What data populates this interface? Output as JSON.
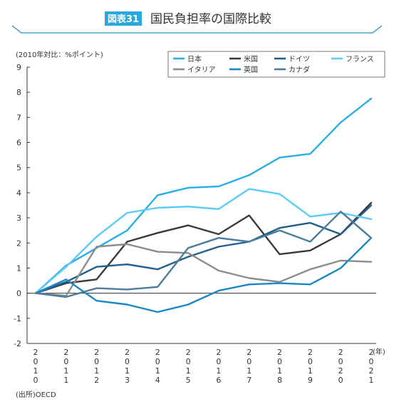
{
  "header": {
    "badge": "図表31",
    "title": "国民負担率の国際比較"
  },
  "colors": {
    "badge_bg": "#29a8e0",
    "frame": "#4aa0d0",
    "axis": "#333333",
    "grid": "#dddddd"
  },
  "chart_data": {
    "type": "line",
    "unit_label": "(2010年対比：%ポイント)",
    "x_unit": "(年)",
    "source": "(出所)OECD",
    "x": [
      "2010",
      "2011",
      "2012",
      "2013",
      "2014",
      "2015",
      "2016",
      "2017",
      "2018",
      "2019",
      "2020",
      "2021"
    ],
    "ylim": [
      -2,
      9
    ],
    "yticks": [
      -2,
      -1,
      0,
      1,
      2,
      3,
      4,
      5,
      6,
      7,
      8,
      9
    ],
    "grid": false,
    "legend_position": "top-right",
    "series": [
      {
        "name": "日本",
        "color": "#29aee6",
        "values": [
          0,
          1.1,
          1.8,
          2.5,
          3.9,
          4.2,
          4.25,
          4.7,
          5.4,
          5.55,
          6.8,
          7.75
        ]
      },
      {
        "name": "米国",
        "color": "#3a3a3a",
        "values": [
          0,
          0.4,
          0.55,
          2.05,
          2.4,
          2.7,
          2.35,
          3.1,
          1.55,
          1.7,
          2.35,
          3.6
        ]
      },
      {
        "name": "ドイツ",
        "color": "#1f5f8a",
        "values": [
          0,
          0.45,
          1.05,
          1.15,
          0.95,
          1.45,
          1.85,
          2.05,
          2.6,
          2.8,
          2.35,
          3.5
        ]
      },
      {
        "name": "フランス",
        "color": "#5ccbf5",
        "values": [
          0,
          1.05,
          2.25,
          3.2,
          3.4,
          3.45,
          3.35,
          4.15,
          3.95,
          3.05,
          3.2,
          2.95
        ]
      },
      {
        "name": "イタリア",
        "color": "#8c8c8c",
        "values": [
          0,
          -0.1,
          1.85,
          1.95,
          1.65,
          1.6,
          0.9,
          0.6,
          0.45,
          0.95,
          1.3,
          1.25
        ]
      },
      {
        "name": "英国",
        "color": "#1a88c5",
        "values": [
          0,
          0.55,
          -0.3,
          -0.45,
          -0.75,
          -0.45,
          0.1,
          0.35,
          0.4,
          0.35,
          1.0,
          2.2
        ]
      },
      {
        "name": "カナダ",
        "color": "#4a7d99",
        "values": [
          0,
          -0.15,
          0.2,
          0.15,
          0.25,
          1.8,
          2.2,
          2.05,
          2.5,
          2.05,
          3.25,
          2.2
        ]
      }
    ]
  }
}
